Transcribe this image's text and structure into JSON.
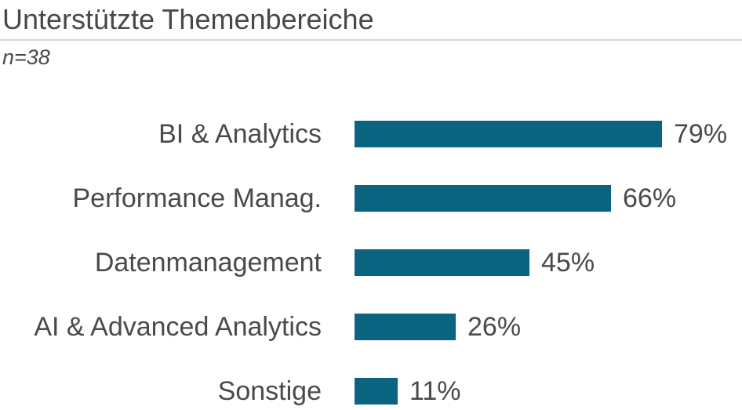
{
  "header": {
    "title": "Unterstützte Themenbereiche",
    "sample_size_label": "n=38"
  },
  "chart_data": {
    "type": "bar",
    "orientation": "horizontal",
    "title": "Unterstützte Themenbereiche",
    "subtitle": "n=38",
    "categories": [
      "BI & Analytics",
      "Performance Manag.",
      "Datenmanagement",
      "AI & Advanced Analytics",
      "Sonstige"
    ],
    "values": [
      79,
      66,
      45,
      26,
      11
    ],
    "value_labels": [
      "79%",
      "66%",
      "45%",
      "26%",
      "11%"
    ],
    "unit": "%",
    "xlim": [
      0,
      100
    ],
    "grid": false,
    "legend": false,
    "bar_color": "#0a6480",
    "text_color": "#4a4a4a",
    "title_color": "#484848",
    "divider_color": "#d6d6d6"
  }
}
